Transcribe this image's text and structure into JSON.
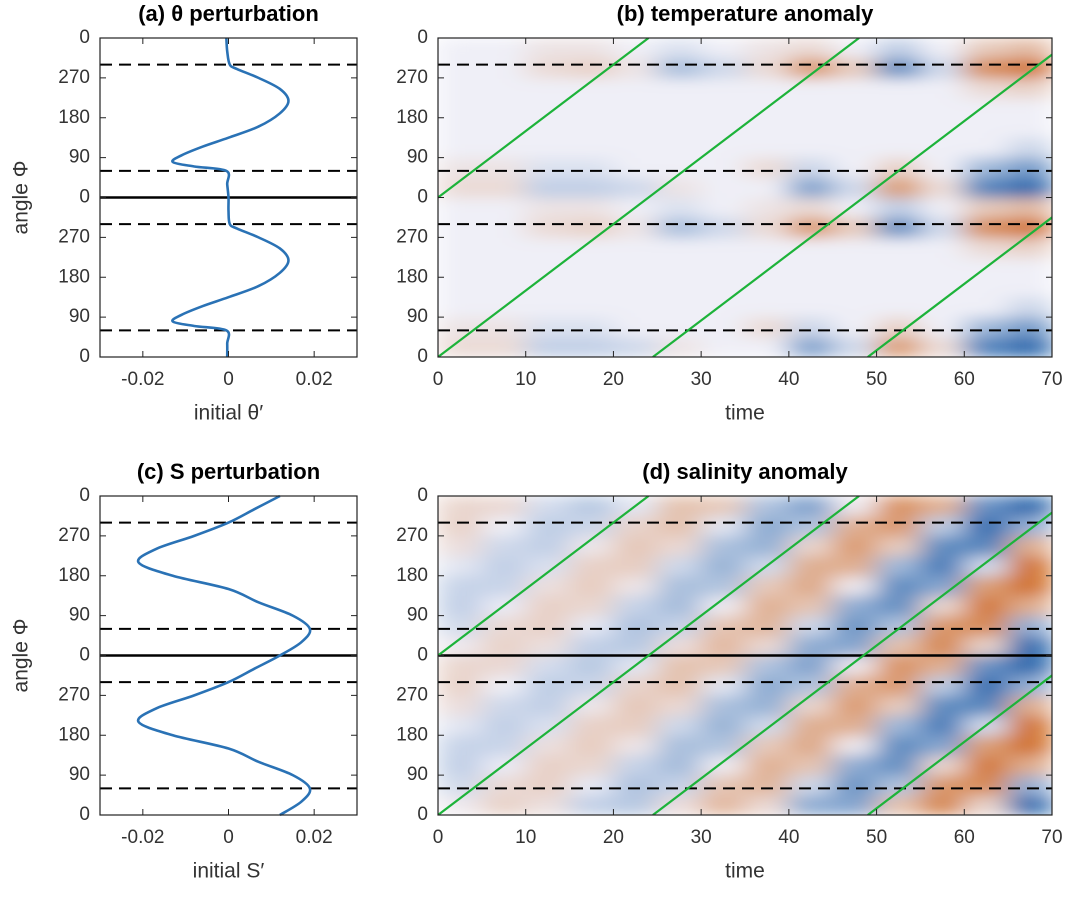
{
  "chart_data": [
    {
      "type": "line",
      "title": "(a) θ perturbation",
      "xlabel": "initial θ′",
      "ylabel": "angle Φ",
      "xlim": [
        -0.03,
        0.03
      ],
      "xticks": [
        -0.02,
        0,
        0.02
      ],
      "ylim": [
        0,
        720
      ],
      "yticks": [
        0,
        90,
        180,
        270,
        {
          "value": 360,
          "label": "0"
        },
        {
          "value": 450,
          "label": "90"
        },
        {
          "value": 540,
          "label": "180"
        },
        {
          "value": 630,
          "label": "270"
        },
        {
          "value": 720,
          "label": "0"
        }
      ],
      "ref_lines": {
        "dashed": [
          60,
          300,
          420,
          660
        ],
        "solid": [
          360
        ]
      },
      "color": "#2a72b5",
      "y": [
        0,
        30,
        60,
        70,
        80,
        95,
        115,
        135,
        160,
        190,
        218,
        245,
        270,
        290,
        300,
        330,
        360,
        390,
        420,
        430,
        440,
        455,
        475,
        495,
        520,
        550,
        578,
        605,
        630,
        650,
        660,
        690,
        720
      ],
      "values": [
        -0.0003,
        -0.0003,
        -0.0005,
        -0.008,
        -0.013,
        -0.011,
        -0.006,
        0,
        0.007,
        0.012,
        0.014,
        0.012,
        0.007,
        0.002,
        0.0003,
        0,
        0,
        -0.0003,
        -0.0005,
        -0.008,
        -0.013,
        -0.011,
        -0.006,
        0,
        0.007,
        0.012,
        0.014,
        0.012,
        0.007,
        0.002,
        0.0003,
        -0.0003,
        -0.0005
      ]
    },
    {
      "type": "heatmap",
      "title": "(b) temperature anomaly",
      "xlabel": "time",
      "xlim": [
        0,
        70
      ],
      "xticks": [
        0,
        10,
        20,
        30,
        40,
        50,
        60,
        70
      ],
      "ylim": [
        0,
        720
      ],
      "yticks": [
        0,
        90,
        180,
        270,
        {
          "value": 360,
          "label": "0"
        },
        {
          "value": 450,
          "label": "90"
        },
        {
          "value": 540,
          "label": "180"
        },
        {
          "value": 630,
          "label": "270"
        },
        {
          "value": 720,
          "label": "0"
        }
      ],
      "ref_lines": {
        "dashed": [
          60,
          300,
          420,
          660
        ],
        "solid": []
      },
      "phase_lines": [
        {
          "x": [
            0,
            24
          ],
          "y": [
            360,
            720
          ]
        },
        {
          "x": [
            0,
            48
          ],
          "y": [
            0,
            720
          ]
        },
        {
          "x": [
            24.5,
            70
          ],
          "y": [
            0,
            682.5
          ]
        },
        {
          "x": [
            49,
            70
          ],
          "y": [
            0,
            315
          ]
        }
      ],
      "phase_line_color": "#1db33a",
      "cmap": {
        "negative": "#1c5ea8",
        "zero": "#efeff7",
        "positive": "#cf6a22"
      },
      "clim": [
        -1,
        1
      ],
      "x_edges": [
        0,
        5,
        10,
        15,
        20,
        25,
        30,
        35,
        40,
        45,
        50,
        55,
        60,
        65,
        70
      ],
      "y_edges": [
        0,
        45,
        90,
        135,
        180,
        225,
        270,
        315,
        360,
        405,
        450,
        495,
        540,
        585,
        630,
        675,
        720
      ],
      "values": [
        [
          0.1,
          0.1,
          -0.15,
          -0.15,
          -0.1,
          0.05,
          0,
          0,
          -0.45,
          -0.1,
          0.55,
          0.1,
          -0.7,
          -0.9
        ],
        [
          0.05,
          0.05,
          -0.05,
          -0.05,
          0,
          0,
          0,
          0.1,
          -0.1,
          0,
          0.15,
          0,
          -0.3,
          -0.5
        ],
        [
          0,
          0,
          0,
          0,
          0,
          0,
          0,
          0,
          0,
          0,
          0,
          0,
          0,
          -0.1
        ],
        [
          0,
          0,
          0,
          0,
          0,
          0,
          0,
          0,
          0,
          0,
          0,
          0,
          0,
          0
        ],
        [
          0,
          0,
          0,
          0,
          0,
          0,
          0,
          0,
          0,
          0,
          0,
          0,
          0,
          0
        ],
        [
          0,
          0,
          0,
          0,
          0,
          0,
          0,
          0,
          0,
          0,
          0,
          0,
          0.1,
          0.15
        ],
        [
          0,
          0,
          0.1,
          0.15,
          0.05,
          -0.25,
          -0.1,
          0.1,
          0.6,
          0.2,
          -0.6,
          -0.1,
          0.7,
          0.9
        ],
        [
          0,
          0,
          0.05,
          0.05,
          0,
          -0.05,
          0,
          0.05,
          0.1,
          0,
          -0.15,
          0,
          0.2,
          0.3
        ],
        [
          0.1,
          0.1,
          -0.15,
          -0.15,
          -0.1,
          0.05,
          0,
          0,
          -0.45,
          -0.1,
          0.55,
          0.1,
          -0.7,
          -0.9
        ],
        [
          0.05,
          0.05,
          -0.05,
          -0.05,
          0,
          0,
          0,
          0.1,
          -0.1,
          0,
          0.15,
          0,
          -0.3,
          -0.5
        ],
        [
          0,
          0,
          0,
          0,
          0,
          0,
          0,
          0,
          0,
          0,
          0,
          0,
          0,
          -0.1
        ],
        [
          0,
          0,
          0,
          0,
          0,
          0,
          0,
          0,
          0,
          0,
          0,
          0,
          0,
          0
        ],
        [
          0,
          0,
          0,
          0,
          0,
          0,
          0,
          0,
          0,
          0,
          0,
          0,
          0,
          0
        ],
        [
          0,
          0,
          0,
          0,
          0,
          0,
          0,
          0,
          0,
          0,
          0,
          0,
          0.1,
          0.15
        ],
        [
          0,
          0,
          0.1,
          0.15,
          0.05,
          -0.25,
          -0.1,
          0.1,
          0.6,
          0.2,
          -0.6,
          -0.1,
          0.7,
          0.9
        ],
        [
          0,
          0,
          0.05,
          0.05,
          0,
          -0.05,
          0,
          0.05,
          0.1,
          0,
          -0.15,
          0,
          0.2,
          0.3
        ]
      ]
    },
    {
      "type": "line",
      "title": "(c) S perturbation",
      "xlabel": "initial S′",
      "ylabel": "angle Φ",
      "xlim": [
        -0.03,
        0.03
      ],
      "xticks": [
        -0.02,
        0,
        0.02
      ],
      "ylim": [
        0,
        720
      ],
      "yticks": [
        0,
        90,
        180,
        270,
        {
          "value": 360,
          "label": "0"
        },
        {
          "value": 450,
          "label": "90"
        },
        {
          "value": 540,
          "label": "180"
        },
        {
          "value": 630,
          "label": "270"
        },
        {
          "value": 720,
          "label": "0"
        }
      ],
      "ref_lines": {
        "dashed": [
          60,
          300,
          420,
          660
        ],
        "solid": [
          360
        ]
      },
      "color": "#2a72b5",
      "y": [
        0,
        30,
        60,
        90,
        120,
        150,
        180,
        210,
        240,
        270,
        300,
        330,
        360,
        390,
        420,
        450,
        480,
        510,
        540,
        570,
        600,
        630,
        660,
        690,
        720
      ],
      "values": [
        0.012,
        0.017,
        0.019,
        0.015,
        0.007,
        0,
        -0.013,
        -0.021,
        -0.017,
        -0.008,
        0,
        0.006,
        0.012,
        0.017,
        0.019,
        0.015,
        0.007,
        0,
        -0.013,
        -0.021,
        -0.017,
        -0.008,
        0,
        0.006,
        0.012
      ]
    },
    {
      "type": "heatmap",
      "title": "(d) salinity anomaly",
      "xlabel": "time",
      "xlim": [
        0,
        70
      ],
      "xticks": [
        0,
        10,
        20,
        30,
        40,
        50,
        60,
        70
      ],
      "ylim": [
        0,
        720
      ],
      "yticks": [
        0,
        90,
        180,
        270,
        {
          "value": 360,
          "label": "0"
        },
        {
          "value": 450,
          "label": "90"
        },
        {
          "value": 540,
          "label": "180"
        },
        {
          "value": 630,
          "label": "270"
        },
        {
          "value": 720,
          "label": "0"
        }
      ],
      "ref_lines": {
        "dashed": [
          60,
          300,
          420,
          660
        ],
        "solid": [
          360
        ]
      },
      "phase_lines": [
        {
          "x": [
            0,
            24
          ],
          "y": [
            360,
            720
          ]
        },
        {
          "x": [
            0,
            48
          ],
          "y": [
            0,
            720
          ]
        },
        {
          "x": [
            24.5,
            70
          ],
          "y": [
            0,
            682.5
          ]
        },
        {
          "x": [
            49,
            70
          ],
          "y": [
            0,
            315
          ]
        }
      ],
      "phase_line_color": "#1db33a",
      "cmap": {
        "negative": "#1c5ea8",
        "zero": "#efeff7",
        "positive": "#cf6a22"
      },
      "clim": [
        -1,
        1
      ],
      "x_edges": [
        0,
        5,
        10,
        15,
        20,
        25,
        30,
        35,
        40,
        45,
        50,
        55,
        60,
        65,
        70
      ],
      "y_edges": [
        0,
        45,
        90,
        135,
        180,
        225,
        270,
        315,
        360,
        405,
        450,
        495,
        540,
        585,
        630,
        675,
        720
      ],
      "values": [
        [
          0.02,
          0.15,
          0.07,
          -0.15,
          -0.19,
          0.08,
          0.33,
          0.11,
          -0.39,
          -0.43,
          0.26,
          0.73,
          0.14,
          -0.9
        ],
        [
          -0.09,
          0.1,
          0.16,
          -0.02,
          -0.23,
          -0.13,
          0.24,
          0.35,
          -0.1,
          -0.56,
          -0.22,
          0.6,
          0.7,
          -0.35
        ],
        [
          -0.15,
          -0.01,
          0.16,
          0.12,
          -0.13,
          -0.27,
          0.01,
          0.39,
          0.24,
          -0.38,
          -0.59,
          0.12,
          0.86,
          0.41
        ],
        [
          -0.13,
          -0.12,
          0.07,
          0.19,
          0.04,
          -0.25,
          -0.22,
          0.21,
          0.45,
          0.02,
          -0.62,
          -0.43,
          0.54,
          0.93
        ],
        [
          -0.03,
          -0.15,
          -0.06,
          0.16,
          0.18,
          -0.1,
          -0.33,
          -0.09,
          0.41,
          0.4,
          -0.3,
          -0.74,
          -0.08,
          0.93
        ],
        [
          0.08,
          -0.1,
          -0.15,
          0.03,
          0.22,
          0.11,
          -0.25,
          -0.34,
          0.13,
          0.56,
          0.19,
          -0.63,
          -0.66,
          0.41
        ],
        [
          0.15,
          0,
          -0.16,
          -0.11,
          0.14,
          0.26,
          -0.03,
          -0.39,
          -0.22,
          0.4,
          0.57,
          -0.17,
          -0.87,
          -0.35
        ],
        [
          0.13,
          0.11,
          -0.08,
          -0.19,
          -0.03,
          0.26,
          0.21,
          -0.23,
          -0.45,
          0.02,
          0.63,
          0.39,
          -0.58,
          -0.9
        ],
        [
          0.02,
          0.15,
          0.07,
          -0.15,
          -0.19,
          0.08,
          0.33,
          0.11,
          -0.39,
          -0.43,
          0.26,
          0.73,
          0.14,
          -0.9
        ],
        [
          -0.09,
          0.1,
          0.16,
          -0.02,
          -0.23,
          -0.13,
          0.24,
          0.35,
          -0.1,
          -0.56,
          -0.22,
          0.6,
          0.7,
          -0.35
        ],
        [
          -0.15,
          -0.01,
          0.16,
          0.12,
          -0.13,
          -0.27,
          0.01,
          0.39,
          0.24,
          -0.38,
          -0.59,
          0.12,
          0.86,
          0.41
        ],
        [
          -0.13,
          -0.12,
          0.07,
          0.19,
          0.04,
          -0.25,
          -0.22,
          0.21,
          0.45,
          0.02,
          -0.62,
          -0.43,
          0.54,
          0.93
        ],
        [
          -0.03,
          -0.15,
          -0.06,
          0.16,
          0.18,
          -0.1,
          -0.33,
          -0.09,
          0.41,
          0.4,
          -0.3,
          -0.74,
          -0.08,
          0.93
        ],
        [
          0.08,
          -0.1,
          -0.15,
          0.03,
          0.22,
          0.11,
          -0.25,
          -0.34,
          0.13,
          0.56,
          0.19,
          -0.63,
          -0.66,
          0.41
        ],
        [
          0.15,
          0,
          -0.16,
          -0.11,
          0.14,
          0.26,
          -0.03,
          -0.39,
          -0.22,
          0.4,
          0.57,
          -0.17,
          -0.87,
          -0.35
        ],
        [
          0.13,
          0.11,
          -0.08,
          -0.19,
          -0.03,
          0.26,
          0.21,
          -0.23,
          -0.45,
          0.02,
          0.63,
          0.39,
          -0.58,
          -0.9
        ]
      ]
    }
  ]
}
